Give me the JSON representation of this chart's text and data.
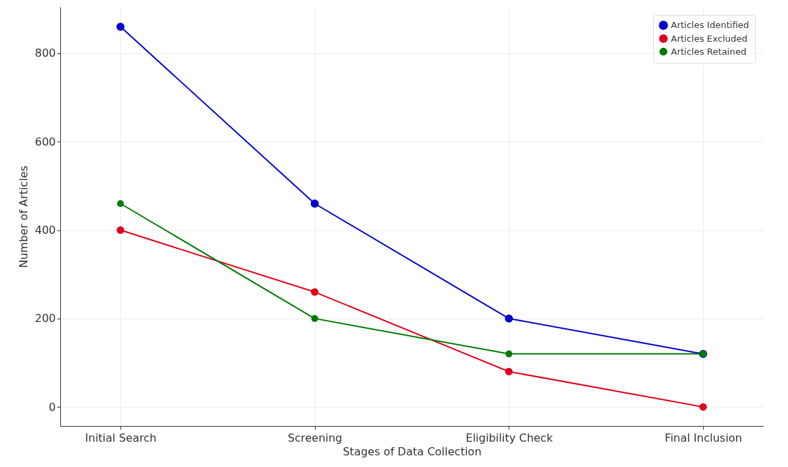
{
  "chart_data": {
    "type": "line",
    "xlabel": "Stages of Data Collection",
    "ylabel": "Number of Articles",
    "categories": [
      "Initial Search",
      "Screening",
      "Eligibility Check",
      "Final Inclusion"
    ],
    "series": [
      {
        "name": "Articles Identified",
        "color": "#0000cc",
        "values": [
          860,
          460,
          200,
          120
        ]
      },
      {
        "name": "Articles Excluded",
        "color": "#e0001a",
        "values": [
          400,
          260,
          80,
          0
        ]
      },
      {
        "name": "Articles Retained",
        "color": "#007a00",
        "values": [
          460,
          200,
          120,
          120
        ]
      }
    ],
    "ylim": [
      -43,
      905
    ],
    "yticks": [
      0,
      200,
      400,
      600,
      800
    ],
    "grid": true,
    "legend": "top right",
    "marker": "circle",
    "line_style": "solid"
  }
}
